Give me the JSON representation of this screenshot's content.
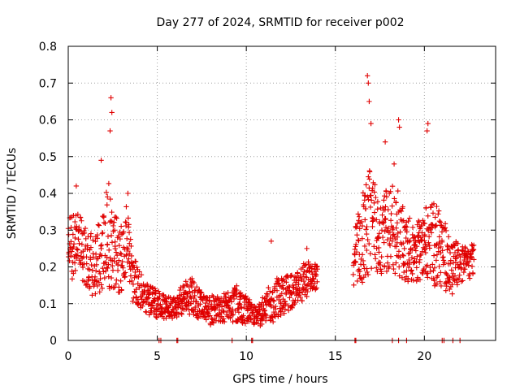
{
  "chart_data": {
    "type": "scatter",
    "title": "Day 277 of 2024, SRMTID for receiver p002",
    "xlabel": "GPS time / hours",
    "ylabel": "SRMTID / TECUs",
    "xlim": [
      0,
      24
    ],
    "ylim": [
      0,
      0.8
    ],
    "x_ticks": [
      0,
      5,
      10,
      15,
      20
    ],
    "y_ticks": [
      0,
      0.1,
      0.2,
      0.3,
      0.4,
      0.5,
      0.6,
      0.7,
      0.8
    ],
    "x_tick_labels": [
      "0",
      "5",
      "10",
      "15",
      "20"
    ],
    "y_tick_labels": [
      "0",
      "0.1",
      "0.2",
      "0.3",
      "0.4",
      "0.5",
      "0.6",
      "0.7",
      "0.8"
    ],
    "grid": true,
    "marker": "+",
    "color": "#e00000",
    "envelope": {
      "description": "typical SRMTID level vs GPS time (hours), digitized",
      "segments": [
        {
          "x": [
            0.0,
            0.5,
            1.0,
            1.5,
            2.0,
            2.3,
            2.6,
            3.0,
            3.3,
            3.6,
            4.0,
            4.5,
            5.0,
            5.5,
            6.0,
            6.5,
            7.0,
            7.5,
            8.0,
            8.5,
            9.0,
            9.5,
            10.0,
            10.5,
            11.0,
            11.5,
            12.0,
            12.5,
            13.0,
            13.5,
            14.0
          ],
          "mid": [
            0.24,
            0.27,
            0.22,
            0.2,
            0.24,
            0.3,
            0.24,
            0.22,
            0.28,
            0.17,
            0.14,
            0.11,
            0.1,
            0.09,
            0.09,
            0.12,
            0.12,
            0.09,
            0.08,
            0.09,
            0.09,
            0.1,
            0.08,
            0.07,
            0.08,
            0.11,
            0.12,
            0.13,
            0.15,
            0.17,
            0.18
          ],
          "spread": [
            0.09,
            0.09,
            0.08,
            0.09,
            0.12,
            0.16,
            0.1,
            0.1,
            0.09,
            0.07,
            0.05,
            0.04,
            0.04,
            0.03,
            0.03,
            0.05,
            0.05,
            0.04,
            0.04,
            0.04,
            0.04,
            0.05,
            0.04,
            0.03,
            0.04,
            0.06,
            0.05,
            0.05,
            0.05,
            0.05,
            0.04
          ]
        },
        {
          "x": [
            16.0,
            16.5,
            17.0,
            17.5,
            18.0,
            18.5,
            19.0,
            19.5,
            20.0,
            20.5,
            21.0,
            21.5,
            22.0,
            22.5,
            22.8
          ],
          "mid": [
            0.22,
            0.28,
            0.33,
            0.28,
            0.3,
            0.3,
            0.25,
            0.24,
            0.26,
            0.27,
            0.24,
            0.2,
            0.21,
            0.21,
            0.22
          ],
          "spread": [
            0.07,
            0.14,
            0.15,
            0.1,
            0.12,
            0.12,
            0.09,
            0.08,
            0.1,
            0.12,
            0.1,
            0.08,
            0.05,
            0.05,
            0.06
          ]
        }
      ],
      "start_hour": 0.0,
      "end_hour": 22.9,
      "step_hours": 0.033
    },
    "peaks": [
      {
        "x": 2.4,
        "y": 0.66
      },
      {
        "x": 2.45,
        "y": 0.62
      },
      {
        "x": 2.35,
        "y": 0.57
      },
      {
        "x": 1.85,
        "y": 0.49
      },
      {
        "x": 3.35,
        "y": 0.4
      },
      {
        "x": 16.8,
        "y": 0.72
      },
      {
        "x": 16.85,
        "y": 0.7
      },
      {
        "x": 16.9,
        "y": 0.65
      },
      {
        "x": 17.0,
        "y": 0.59
      },
      {
        "x": 18.55,
        "y": 0.6
      },
      {
        "x": 18.6,
        "y": 0.58
      },
      {
        "x": 20.2,
        "y": 0.59
      },
      {
        "x": 20.15,
        "y": 0.57
      },
      {
        "x": 17.8,
        "y": 0.54
      },
      {
        "x": 18.3,
        "y": 0.48
      },
      {
        "x": 0.45,
        "y": 0.42
      },
      {
        "x": 11.4,
        "y": 0.27
      },
      {
        "x": 13.4,
        "y": 0.25
      }
    ],
    "zero_markers": [
      5.1,
      5.2,
      6.1,
      6.15,
      9.2,
      10.3,
      10.35,
      16.1,
      16.15,
      18.2,
      18.55,
      19.0,
      21.0,
      21.1,
      21.6,
      22.0
    ]
  }
}
